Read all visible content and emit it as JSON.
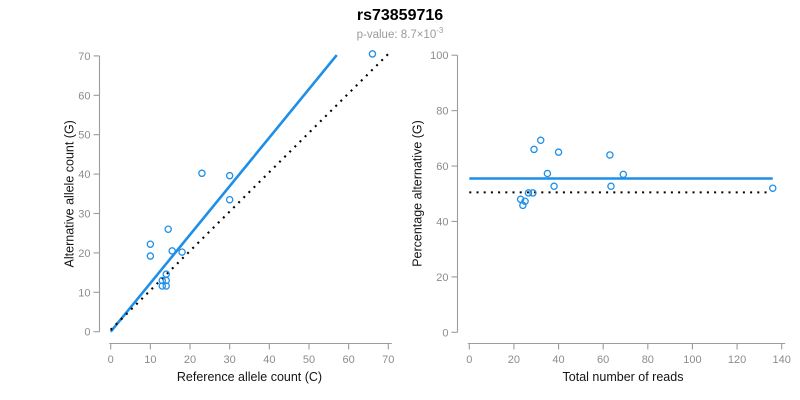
{
  "header": {
    "title": "rs73859716",
    "subtitle_base": "p-value: 8.7×10",
    "subtitle_exp": "-3"
  },
  "colors": {
    "accent_blue": "#1E8FE8",
    "dotted_black": "#000000",
    "axis_gray": "#9C9C9C",
    "tick_text_gray": "#8C8C8C",
    "subtitle_gray": "#9B9B9B",
    "title_black": "#000000"
  },
  "chart_data": [
    {
      "type": "scatter",
      "title": "",
      "xlabel": "Reference allele count (C)",
      "ylabel": "Alternative allele count (G)",
      "xlim": [
        0,
        70
      ],
      "ylim": [
        0,
        70
      ],
      "xticks": [
        0,
        10,
        20,
        30,
        40,
        50,
        60,
        70
      ],
      "yticks": [
        0,
        10,
        20,
        30,
        40,
        50,
        60,
        70
      ],
      "grid": false,
      "legend": "none",
      "points": [
        [
          23,
          40.2
        ],
        [
          30,
          39.6
        ],
        [
          30,
          33.5
        ],
        [
          14.5,
          26
        ],
        [
          10,
          22.2
        ],
        [
          10,
          19.2
        ],
        [
          15.5,
          20.5
        ],
        [
          18,
          20.2
        ],
        [
          14,
          14.6
        ],
        [
          13,
          13
        ],
        [
          14,
          13
        ],
        [
          13,
          11.6
        ],
        [
          14,
          11.6
        ],
        [
          66,
          70.5
        ]
      ],
      "lines": [
        {
          "name": "regression-line",
          "style": "solid",
          "color_key": "accent_blue",
          "from": [
            0,
            0
          ],
          "to": [
            57,
            70.2
          ]
        },
        {
          "name": "identity-line",
          "style": "dotted",
          "color_key": "dotted_black",
          "from": [
            0,
            0.5
          ],
          "to": [
            70,
            70.5
          ]
        }
      ]
    },
    {
      "type": "scatter",
      "title": "",
      "xlabel": "Total number of reads",
      "ylabel": "Percentage alternative (G)",
      "xlim": [
        0,
        140
      ],
      "ylim": [
        0,
        100
      ],
      "xticks": [
        0,
        20,
        40,
        60,
        80,
        100,
        120,
        140
      ],
      "yticks": [
        0,
        20,
        40,
        60,
        80,
        100
      ],
      "grid": false,
      "legend": "none",
      "points": [
        [
          32,
          69.3
        ],
        [
          29,
          66
        ],
        [
          40,
          65
        ],
        [
          35,
          57.3
        ],
        [
          38,
          52.7
        ],
        [
          26.5,
          50.3
        ],
        [
          28.5,
          50.3
        ],
        [
          23,
          48
        ],
        [
          25,
          47.3
        ],
        [
          24,
          45.8
        ],
        [
          63,
          64
        ],
        [
          69,
          57
        ],
        [
          63.5,
          52.7
        ],
        [
          136,
          52
        ]
      ],
      "lines": [
        {
          "name": "mean-percentage-line",
          "style": "solid",
          "color_key": "accent_blue",
          "y": 55.5,
          "x_from": 0,
          "x_to": 136
        },
        {
          "name": "fifty-percent-line",
          "style": "dotted",
          "color_key": "dotted_black",
          "y": 50.5,
          "x_from": 0,
          "x_to": 134
        }
      ]
    }
  ]
}
